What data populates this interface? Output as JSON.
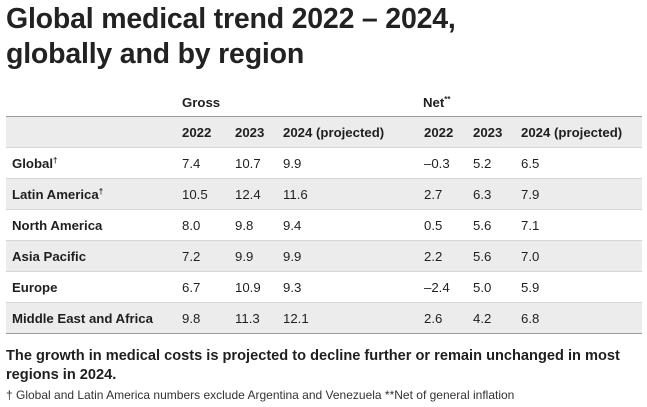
{
  "title": {
    "line1": "Global medical trend 2022 – 2024,",
    "line2": "globally and by region"
  },
  "table": {
    "group_headers": {
      "gross": "Gross",
      "net": "Net",
      "net_marker": "**"
    },
    "year_headers": [
      "2022",
      "2023",
      "2024 (projected)",
      "2022",
      "2023",
      "2024 (projected)"
    ],
    "rows": [
      {
        "region": "Global",
        "marker": "†",
        "values": [
          "7.4",
          "10.7",
          "9.9",
          "–0.3",
          "5.2",
          "6.5"
        ]
      },
      {
        "region": "Latin America",
        "marker": "†",
        "values": [
          "10.5",
          "12.4",
          "11.6",
          "2.7",
          "6.3",
          "7.9"
        ]
      },
      {
        "region": "North America",
        "marker": "",
        "values": [
          "8.0",
          "9.8",
          "9.4",
          "0.5",
          "5.6",
          "7.1"
        ]
      },
      {
        "region": "Asia Pacific",
        "marker": "",
        "values": [
          "7.2",
          "9.9",
          "9.9",
          "2.2",
          "5.6",
          "7.0"
        ]
      },
      {
        "region": "Europe",
        "marker": "",
        "values": [
          "6.7",
          "10.9",
          "9.3",
          "–2.4",
          "5.0",
          "5.9"
        ]
      },
      {
        "region": "Middle East and Africa",
        "marker": "",
        "values": [
          "9.8",
          "11.3",
          "12.1",
          "2.6",
          "4.2",
          "6.8"
        ]
      }
    ]
  },
  "summary": "The growth in medical costs is projected to decline further or remain unchanged in most regions in 2024.",
  "footnote": "† Global and Latin America numbers exclude Argentina and Venezuela **Net of general inflation",
  "colors": {
    "stripe": "#ececec",
    "text": "#1f1f1f"
  }
}
